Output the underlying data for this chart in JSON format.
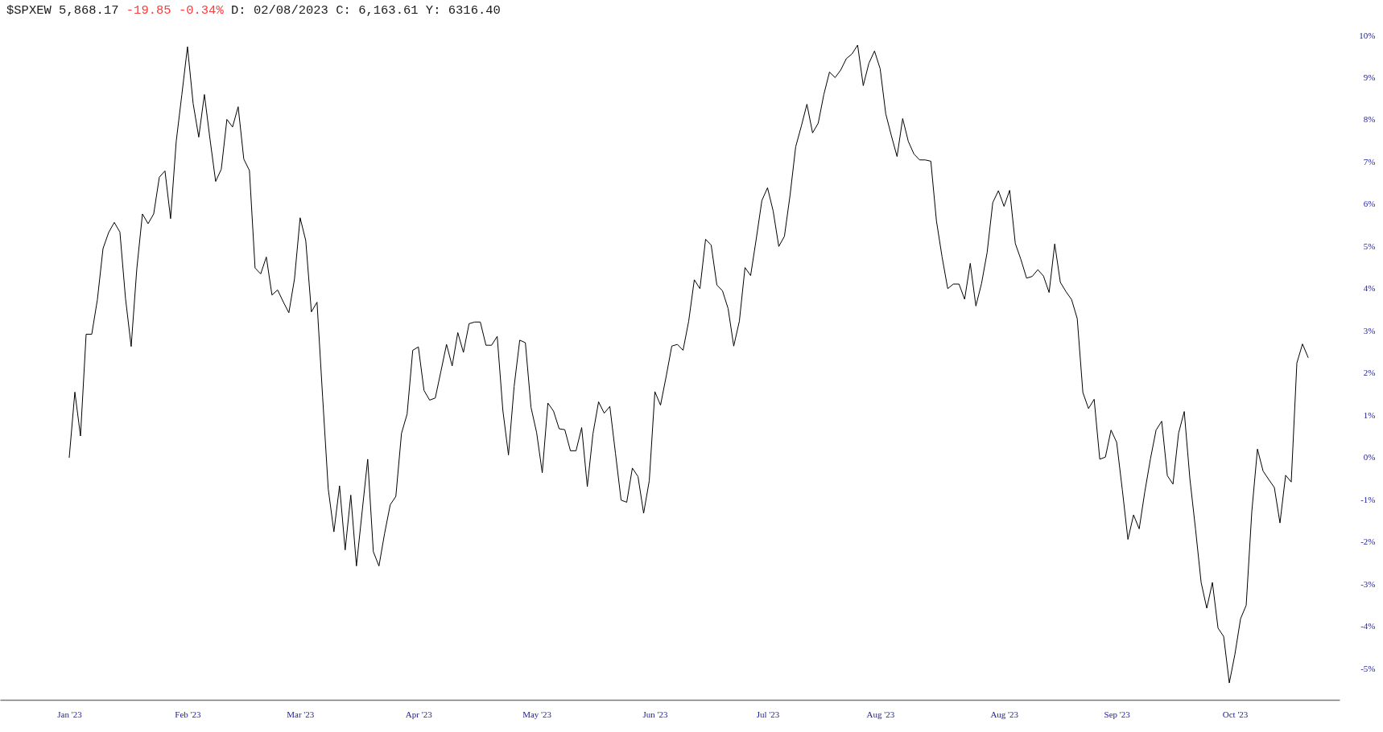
{
  "chart_data": {
    "type": "line",
    "title": "$SPXEW 5,868.17",
    "subtitle": "-19.85 -0.34%",
    "annotations": [
      "D: 02/08/2023 C: 6,163.61 Y:  6316.40"
    ],
    "categories": [
      "Jan '23",
      null,
      null,
      null,
      null,
      null,
      null,
      null,
      null,
      null,
      null,
      null,
      null,
      null,
      null,
      null,
      null,
      null,
      null,
      null,
      null,
      "Feb '23",
      null,
      null,
      null,
      null,
      null,
      null,
      null,
      null,
      null,
      null,
      null,
      null,
      null,
      null,
      null,
      null,
      null,
      null,
      null,
      "Mar '23",
      null,
      null,
      null,
      null,
      null,
      null,
      null,
      null,
      null,
      null,
      null,
      null,
      null,
      null,
      null,
      null,
      null,
      null,
      null,
      null,
      "Apr '23",
      null,
      null,
      null,
      null,
      null,
      null,
      null,
      null,
      null,
      null,
      null,
      null,
      null,
      null,
      null,
      null,
      null,
      null,
      null,
      null,
      "May '23",
      null,
      null,
      null,
      null,
      null,
      null,
      null,
      null,
      null,
      null,
      null,
      null,
      null,
      null,
      null,
      null,
      null,
      null,
      null,
      null,
      "Jun '23",
      null,
      null,
      null,
      null,
      null,
      null,
      null,
      null,
      null,
      null,
      null,
      null,
      null,
      null,
      null,
      null,
      null,
      null,
      null,
      "Jul '23",
      null,
      null,
      null,
      null,
      null,
      null,
      null,
      null,
      null,
      null,
      null,
      null,
      null,
      null,
      null,
      null,
      null,
      null,
      null,
      "Aug '23",
      null,
      null,
      null,
      null,
      null,
      null,
      null,
      null,
      null,
      null,
      null,
      null,
      null,
      null,
      null,
      null,
      null,
      null,
      null,
      null,
      null,
      "Aug '23",
      null,
      null,
      null,
      null,
      null,
      null,
      null,
      null,
      null,
      null,
      null,
      null,
      null,
      null,
      null,
      null,
      null,
      null,
      null,
      "Sep '23",
      null,
      null,
      null,
      null,
      null,
      null,
      null,
      null,
      null,
      null,
      null,
      null,
      null,
      null,
      null,
      null,
      null,
      null,
      null,
      null,
      "Oct '23",
      null,
      null,
      null,
      null,
      null,
      null,
      null,
      null,
      null,
      null,
      null,
      null,
      null
    ],
    "series": [
      {
        "color": "#000000",
        "values": [
          0.0,
          1.55,
          0.51,
          2.92,
          2.92,
          3.74,
          4.95,
          5.33,
          5.57,
          5.34,
          3.76,
          2.63,
          4.47,
          5.77,
          5.54,
          5.77,
          6.64,
          6.79,
          5.66,
          7.49,
          8.6,
          9.73,
          8.39,
          7.59,
          8.6,
          7.54,
          6.54,
          6.83,
          8.01,
          7.83,
          8.31,
          7.07,
          6.8,
          4.49,
          4.35,
          4.75,
          3.85,
          3.97,
          3.69,
          3.43,
          4.23,
          5.68,
          5.14,
          3.45,
          3.68,
          1.43,
          -0.75,
          -1.76,
          -0.67,
          -2.19,
          -0.89,
          -2.57,
          -1.3,
          -0.04,
          -2.23,
          -2.57,
          -1.8,
          -1.12,
          -0.92,
          0.57,
          1.03,
          2.54,
          2.62,
          1.59,
          1.36,
          1.41,
          2.04,
          2.68,
          2.17,
          2.96,
          2.49,
          3.17,
          3.21,
          3.21,
          2.66,
          2.66,
          2.87,
          1.12,
          0.06,
          1.68,
          2.78,
          2.72,
          1.19,
          0.59,
          -0.36,
          1.29,
          1.1,
          0.68,
          0.66,
          0.16,
          0.16,
          0.71,
          -0.69,
          0.56,
          1.32,
          1.05,
          1.21,
          0.1,
          -1.01,
          -1.06,
          -0.25,
          -0.45,
          -1.32,
          -0.55,
          1.56,
          1.24,
          1.92,
          2.64,
          2.68,
          2.54,
          3.23,
          4.21,
          4.0,
          5.17,
          5.03,
          4.09,
          3.95,
          3.53,
          2.64,
          3.23,
          4.5,
          4.31,
          5.18,
          6.09,
          6.39,
          5.84,
          5.0,
          5.24,
          6.21,
          7.36,
          7.85,
          8.37,
          7.69,
          7.92,
          8.6,
          9.13,
          9.0,
          9.18,
          9.45,
          9.56,
          9.77,
          8.81,
          9.34,
          9.63,
          9.21,
          8.14,
          7.62,
          7.13,
          8.03,
          7.49,
          7.19,
          7.05,
          7.05,
          7.02,
          5.6,
          4.75,
          4.0,
          4.11,
          4.11,
          3.75,
          4.6,
          3.59,
          4.12,
          4.86,
          6.04,
          6.32,
          5.95,
          6.33,
          5.07,
          4.69,
          4.25,
          4.29,
          4.45,
          4.3,
          3.91,
          5.06,
          4.15,
          3.93,
          3.74,
          3.29,
          1.54,
          1.16,
          1.38,
          -0.04,
          0.01,
          0.65,
          0.36,
          -0.76,
          -1.94,
          -1.36,
          -1.69,
          -0.81,
          -0.03,
          0.65,
          0.86,
          -0.43,
          -0.63,
          0.58,
          1.09,
          -0.5,
          -1.69,
          -2.96,
          -3.57,
          -2.96,
          -4.04,
          -4.24,
          -5.34,
          -4.66,
          -3.82,
          -3.5,
          -1.28,
          0.2,
          -0.32,
          -0.52,
          -0.71,
          -1.55,
          -0.42,
          -0.58,
          2.24,
          2.69,
          2.37
        ]
      }
    ],
    "ylim": [
      -5.74,
      10
    ],
    "yticks": [
      {
        "value": 10,
        "label": "10%"
      },
      {
        "value": 9,
        "label": "9%"
      },
      {
        "value": 8,
        "label": "8%"
      },
      {
        "value": 7,
        "label": "7%"
      },
      {
        "value": 6,
        "label": "6%"
      },
      {
        "value": 5,
        "label": "5%"
      },
      {
        "value": 4,
        "label": "4%"
      },
      {
        "value": 3,
        "label": "3%"
      },
      {
        "value": 2,
        "label": "2%"
      },
      {
        "value": 1,
        "label": "1%"
      },
      {
        "value": 0,
        "label": "0%"
      },
      {
        "value": -1,
        "label": "-1%"
      },
      {
        "value": -2,
        "label": "-2%"
      },
      {
        "value": -3,
        "label": "-3%"
      },
      {
        "value": -4,
        "label": "-4%"
      },
      {
        "value": -5,
        "label": "-5%"
      }
    ]
  }
}
